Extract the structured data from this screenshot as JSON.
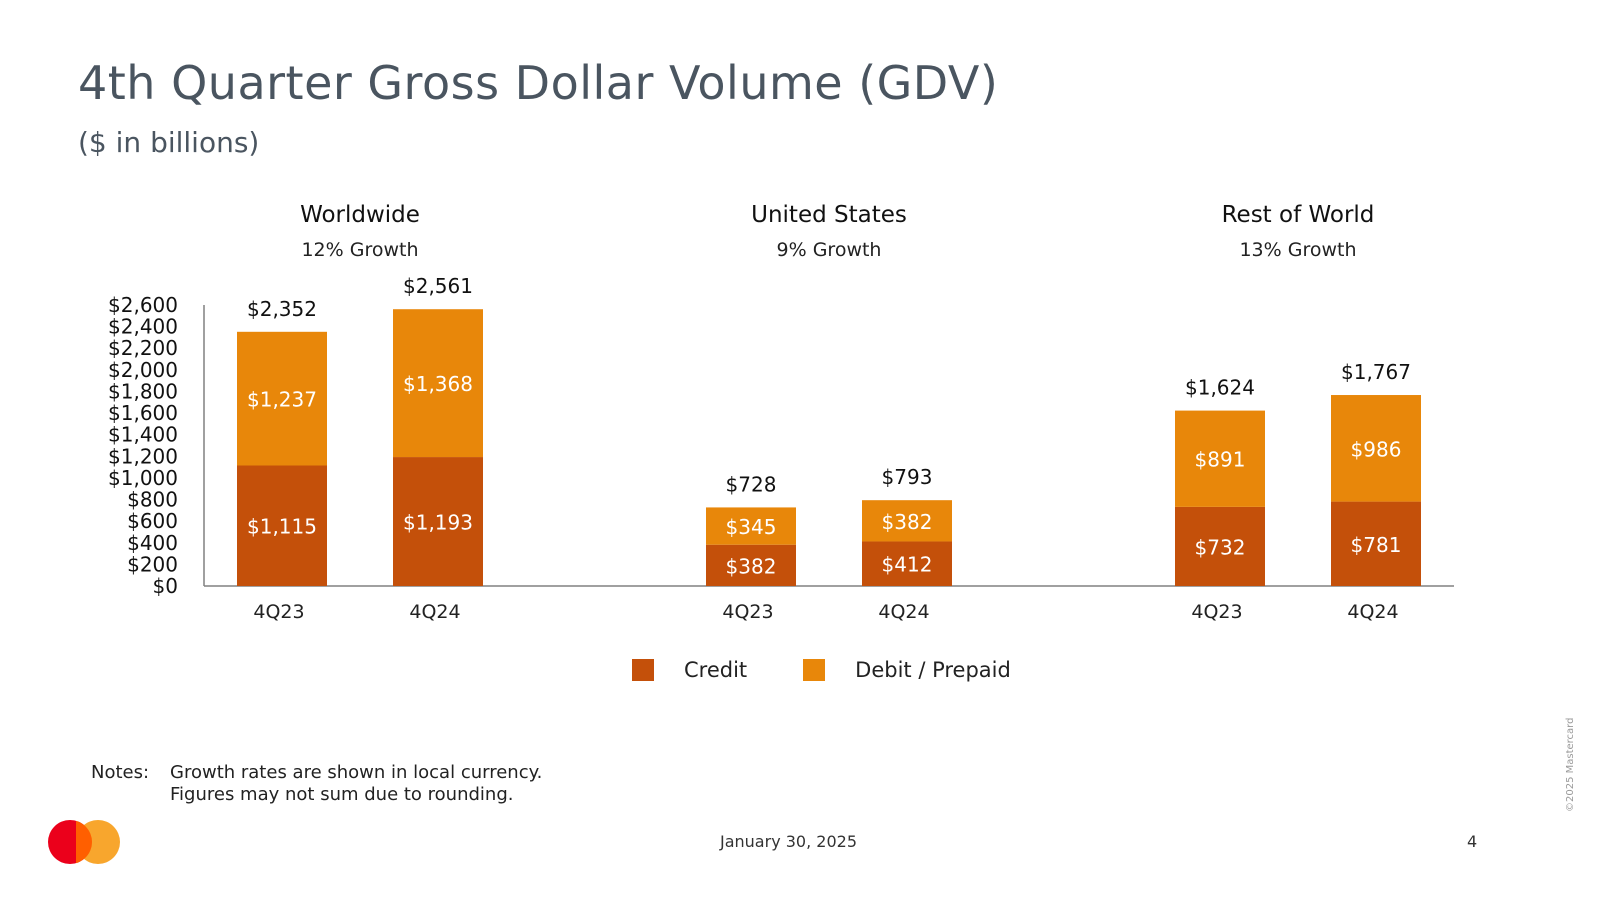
{
  "slide": {
    "title": "4th Quarter Gross Dollar Volume (GDV)",
    "subtitle": "($ in billions)"
  },
  "chart_data": {
    "type": "bar",
    "stacked": true,
    "ylim": [
      0,
      2600
    ],
    "yticks": [
      "$0",
      "$200",
      "$400",
      "$600",
      "$800",
      "$1,000",
      "$1,200",
      "$1,400",
      "$1,600",
      "$1,800",
      "$2,000",
      "$2,200",
      "$2,400",
      "$2,600"
    ],
    "colors": {
      "credit": "#c4500a",
      "debit": "#e8870a"
    },
    "legend_position": "bottom",
    "groups": [
      {
        "title": "Worldwide",
        "growth": "12% Growth",
        "bars": [
          {
            "category": "4Q23",
            "credit": 1115,
            "debit": 1237,
            "credit_label": "$1,115",
            "debit_label": "$1,237",
            "total_label": "$2,352"
          },
          {
            "category": "4Q24",
            "credit": 1193,
            "debit": 1368,
            "credit_label": "$1,193",
            "debit_label": "$1,368",
            "total_label": "$2,561"
          }
        ]
      },
      {
        "title": "United States",
        "growth": "9% Growth",
        "bars": [
          {
            "category": "4Q23",
            "credit": 382,
            "debit": 345,
            "credit_label": "$382",
            "debit_label": "$345",
            "total_label": "$728"
          },
          {
            "category": "4Q24",
            "credit": 412,
            "debit": 382,
            "credit_label": "$412",
            "debit_label": "$382",
            "total_label": "$793"
          }
        ]
      },
      {
        "title": "Rest of World",
        "growth": "13% Growth",
        "bars": [
          {
            "category": "4Q23",
            "credit": 732,
            "debit": 891,
            "credit_label": "$732",
            "debit_label": "$891",
            "total_label": "$1,624"
          },
          {
            "category": "4Q24",
            "credit": 781,
            "debit": 986,
            "credit_label": "$781",
            "debit_label": "$986",
            "total_label": "$1,767"
          }
        ]
      }
    ]
  },
  "legend": {
    "credit": "Credit",
    "debit": "Debit / Prepaid"
  },
  "notes": {
    "label": "Notes:",
    "lines": [
      "Growth rates are shown in local currency.",
      "Figures may not sum due to rounding."
    ]
  },
  "footer": {
    "date": "January 30, 2025",
    "page": "4",
    "copyright": "©2025 Mastercard"
  }
}
